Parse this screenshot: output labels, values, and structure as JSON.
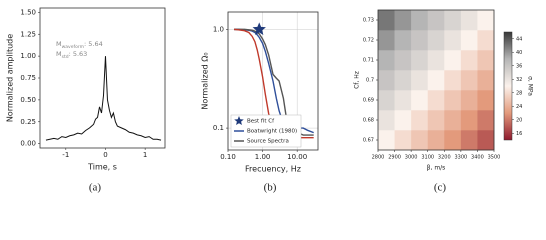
{
  "chart_data": [
    {
      "type": "line",
      "caption": "(a)",
      "xlabel": "Time, s",
      "ylabel": "Normalized amplitude",
      "annotations": [
        {
          "text": "M",
          "sub": "waveform",
          "rest": ": 5.64"
        },
        {
          "text": "M",
          "sub": "std",
          "rest": ": 5.63"
        }
      ],
      "x": [
        -1.5,
        -1.4,
        -1.3,
        -1.2,
        -1.1,
        -1.0,
        -0.9,
        -0.8,
        -0.7,
        -0.6,
        -0.5,
        -0.4,
        -0.3,
        -0.25,
        -0.2,
        -0.15,
        -0.1,
        -0.05,
        0,
        0.05,
        0.1,
        0.15,
        0.2,
        0.25,
        0.3,
        0.4,
        0.5,
        0.6,
        0.7,
        0.8,
        0.9,
        1.0,
        1.1,
        1.2,
        1.3,
        1.4
      ],
      "series": [
        {
          "color": "#111111",
          "values": [
            0.04,
            0.05,
            0.06,
            0.05,
            0.08,
            0.07,
            0.09,
            0.1,
            0.12,
            0.11,
            0.15,
            0.18,
            0.22,
            0.28,
            0.3,
            0.42,
            0.35,
            0.55,
            1.0,
            0.5,
            0.38,
            0.3,
            0.35,
            0.25,
            0.2,
            0.18,
            0.16,
            0.13,
            0.12,
            0.1,
            0.09,
            0.07,
            0.08,
            0.05,
            0.05,
            0.04
          ]
        }
      ],
      "xlim": [
        -1.65,
        1.5
      ],
      "xticks": [
        -1,
        0,
        1
      ],
      "ylim": [
        -0.05,
        1.55
      ],
      "yticks": [
        {
          "value": 0,
          "label": "0.00"
        },
        {
          "value": 0.25,
          "label": "0.25"
        },
        {
          "value": 0.5,
          "label": "0.50"
        },
        {
          "value": 0.75,
          "label": "0.75"
        },
        {
          "value": 1,
          "label": "1.00"
        },
        {
          "value": 1.25,
          "label": "1.25"
        },
        {
          "value": 1.5,
          "label": "1.50"
        }
      ],
      "grid": false
    },
    {
      "type": "line",
      "caption": "(b)",
      "xlabel": "Frecuency, Hz",
      "ylabel": "Normalized Ω₀",
      "log": true,
      "x": [
        0.15,
        0.2,
        0.3,
        0.4,
        0.5,
        0.6,
        0.7,
        0.8,
        1.0,
        1.2,
        1.5,
        2,
        2.5,
        3,
        4,
        5,
        6,
        8,
        10,
        15,
        20,
        30
      ],
      "series": [
        {
          "name": "Boatwright (1980)",
          "color": "#2f4f9a",
          "values": [
            1.0,
            1.0,
            0.99,
            0.98,
            0.96,
            0.93,
            0.88,
            0.83,
            0.72,
            0.6,
            0.45,
            0.3,
            0.2,
            0.15,
            0.11,
            0.1,
            0.1,
            0.1,
            0.1,
            0.1,
            0.095,
            0.09
          ]
        },
        {
          "name": "Source Spectra",
          "color": "#555555",
          "values": [
            1.0,
            1.0,
            1.0,
            0.99,
            0.98,
            0.96,
            0.93,
            0.9,
            0.8,
            0.7,
            0.55,
            0.35,
            0.32,
            0.3,
            0.2,
            0.12,
            0.1,
            0.09,
            0.09,
            0.085,
            0.085,
            0.085
          ]
        },
        {
          "color": "#c0392b",
          "values": [
            1.0,
            0.99,
            0.97,
            0.93,
            0.85,
            0.75,
            0.62,
            0.5,
            0.33,
            0.22,
            0.14,
            0.1,
            0.09,
            0.085,
            0.08,
            0.08,
            0.08,
            0.08,
            0.08,
            0.08,
            0.08,
            0.08
          ]
        }
      ],
      "marker": {
        "name": "Best fit Cf",
        "x": 0.8,
        "y": 1.0,
        "color": "#1f3a7a"
      },
      "xlim": [
        0.1,
        40
      ],
      "xticks": [
        {
          "value": 0.1,
          "label": "0.10"
        },
        {
          "value": 1,
          "label": "1.00"
        },
        {
          "value": 10,
          "label": "10.00"
        }
      ],
      "ylim": [
        0.06,
        1.5
      ],
      "yticks": [
        0.1,
        {
          "value": 1,
          "label": "1.0"
        }
      ],
      "grid": true,
      "legend": "lower left"
    },
    {
      "type": "heatmap",
      "caption": "(c)",
      "xlabel": "β, m/s",
      "ylabel": "Cf, Hz",
      "clabel": "σ, MPa",
      "x": [
        2850,
        2950,
        3050,
        3150,
        3250,
        3350,
        3450
      ],
      "y": [
        0.67,
        0.68,
        0.69,
        0.7,
        0.71,
        0.72,
        0.73
      ],
      "cell": [
        100,
        0.01
      ],
      "z": [
        [
          30,
          28,
          26,
          24,
          22,
          20,
          18
        ],
        [
          32,
          30,
          28,
          26,
          24,
          22,
          20
        ],
        [
          34,
          32,
          30,
          28,
          26,
          24,
          22
        ],
        [
          36,
          34,
          32,
          30,
          28,
          26,
          24
        ],
        [
          38,
          36,
          34,
          32,
          30,
          28,
          26
        ],
        [
          40,
          38,
          36,
          34,
          32,
          30,
          28
        ],
        [
          42,
          40,
          38,
          36,
          34,
          32,
          30
        ]
      ],
      "xlim": [
        2800,
        3500
      ],
      "xticks": [
        2800,
        2900,
        3000,
        3100,
        3200,
        3300,
        3400,
        3500
      ],
      "ylim": [
        0.665,
        0.735
      ],
      "yticks": [
        0.67,
        0.68,
        0.69,
        0.7,
        0.71,
        0.72,
        0.73
      ],
      "zlim": [
        14,
        46
      ],
      "cticks": [
        16,
        20,
        24,
        28,
        32,
        36,
        40,
        44
      ],
      "colormap": [
        "#8e1a2e",
        "#e39a7c",
        "#fbf2ec",
        "#b5b5b5",
        "#383838"
      ]
    }
  ]
}
